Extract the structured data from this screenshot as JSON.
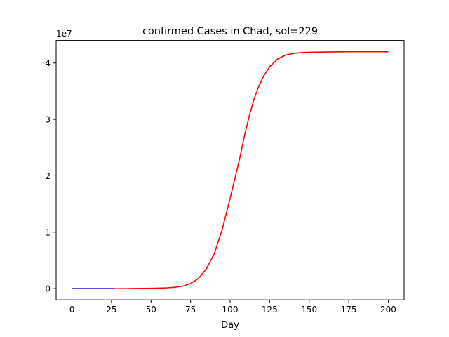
{
  "chart_data": {
    "type": "line",
    "title": "confirmed Cases in Chad, sol=229",
    "xlabel": "Day",
    "ylabel": "",
    "y_offset_label": "1e7",
    "xlim": [
      -10,
      210
    ],
    "ylim": [
      -2000000,
      44000000
    ],
    "x_ticks": [
      0,
      25,
      50,
      75,
      100,
      125,
      150,
      175,
      200
    ],
    "y_ticks": [
      0,
      10000000,
      20000000,
      30000000,
      40000000
    ],
    "y_tick_labels": [
      "0",
      "1",
      "2",
      "3",
      "4"
    ],
    "grid": false,
    "legend": "none",
    "series": [
      {
        "color": "#0000ff",
        "x": [
          0,
          5,
          10,
          15,
          20,
          25,
          27
        ],
        "y": [
          0,
          0,
          0,
          0,
          0,
          0,
          0
        ]
      },
      {
        "color": "#ff0000",
        "x": [
          0,
          10,
          20,
          27,
          35,
          40,
          45,
          50,
          55,
          60,
          65,
          70,
          75,
          80,
          85,
          90,
          95,
          100,
          103,
          106,
          109,
          112,
          115,
          118,
          121,
          125,
          130,
          135,
          140,
          145,
          150,
          160,
          170,
          180,
          190,
          200
        ],
        "y": [
          0,
          0,
          0,
          0,
          0,
          20000,
          40000,
          60000,
          90000,
          140000,
          240000,
          440000,
          900000,
          1800000,
          3500000,
          6200000,
          10500000,
          16000000,
          19500000,
          23000000,
          27000000,
          30500000,
          33500000,
          35800000,
          37600000,
          39300000,
          40700000,
          41400000,
          41700000,
          41850000,
          41900000,
          41950000,
          41980000,
          41990000,
          42000000,
          42000000
        ]
      }
    ]
  }
}
